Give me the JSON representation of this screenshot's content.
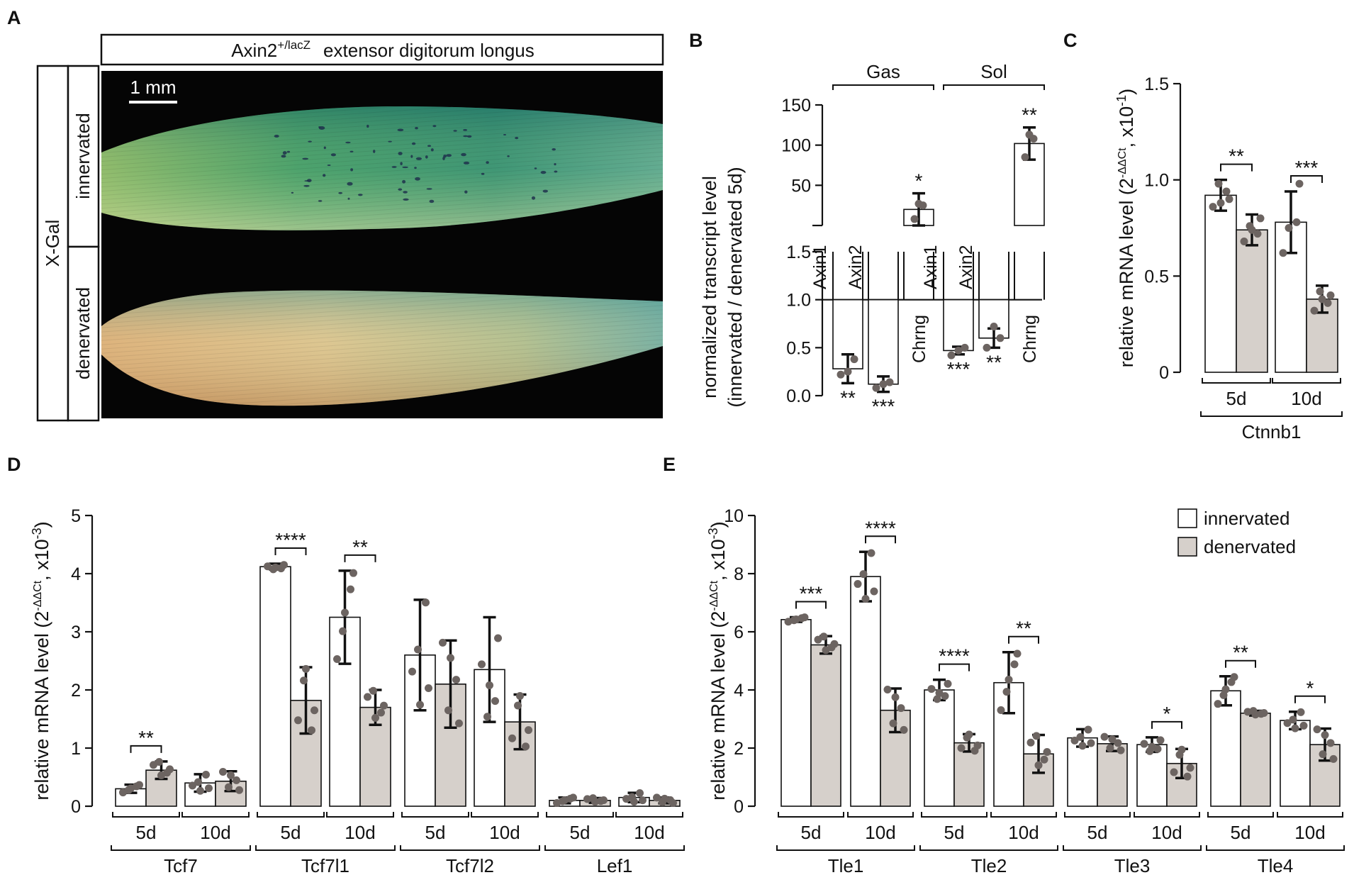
{
  "colors": {
    "innervated": "#ffffff",
    "denervated": "#d6d0cb",
    "dots": "#6c6461",
    "ink": "#111111"
  },
  "panel_a": {
    "letter": "A",
    "title_main": "Axin2",
    "title_sup": "+/lacZ",
    "title_rest": "extensor digitorum longus",
    "stain": "X-Gal",
    "row_top": "innervated",
    "row_bottom": "denervated",
    "scale": "1 mm"
  },
  "chart_data": [
    {
      "id": "B",
      "type": "bar",
      "title": "",
      "ylabel_line1": "normalized transcript level",
      "ylabel_line2": "(innervated / denervated 5d)",
      "broken_axis": true,
      "upper": {
        "ylim": [
          0,
          150
        ],
        "ticks": [
          50,
          100,
          150
        ]
      },
      "lower": {
        "ylim": [
          0,
          1.5
        ],
        "ticks": [
          0.0,
          0.5,
          1.0,
          1.5
        ],
        "baseline": 1.0
      },
      "groups": [
        "Gas",
        "Sol"
      ],
      "categories": [
        "Axin1",
        "Axin2",
        "Chrng",
        "Axin1",
        "Axin2",
        "Chrng"
      ],
      "values": [
        0.28,
        0.12,
        20,
        0.47,
        0.6,
        102
      ],
      "errors": [
        0.15,
        0.08,
        20,
        0.04,
        0.1,
        20
      ],
      "points": [
        [
          0.22,
          0.38,
          0.25
        ],
        [
          0.08,
          0.14,
          0.12
        ],
        [
          8,
          25,
          27
        ],
        [
          0.42,
          0.5,
          0.47
        ],
        [
          0.5,
          0.6,
          0.72
        ],
        [
          85,
          108,
          113
        ]
      ],
      "significance": [
        "**",
        "***",
        "*",
        "***",
        "**",
        "**"
      ]
    },
    {
      "id": "C",
      "type": "bar",
      "ylabel": "relative mRNA level (2",
      "ylabel_sup": "-ΔΔCt",
      "ylabel_mid": ", x10",
      "ylabel_exp": "-1",
      "ylabel_end": ")",
      "ylim": [
        0,
        1.5
      ],
      "ticks": [
        0,
        0.5,
        1.0,
        1.5
      ],
      "tick_labels": [
        "0",
        "0.5",
        "1.0",
        "1.5"
      ],
      "gene": "Ctnnb1",
      "timepoints": [
        "5d",
        "10d"
      ],
      "series": [
        {
          "name": "innervated",
          "values": [
            0.92,
            0.78
          ],
          "errors": [
            0.08,
            0.16
          ]
        },
        {
          "name": "denervated",
          "values": [
            0.74,
            0.38
          ],
          "errors": [
            0.08,
            0.07
          ]
        }
      ],
      "points": [
        [
          [
            0.86,
            0.94,
            0.98,
            0.9,
            0.88
          ],
          [
            0.62,
            0.78,
            0.75,
            0.98
          ]
        ],
        [
          [
            0.68,
            0.72,
            0.76,
            0.8,
            0.74
          ],
          [
            0.32,
            0.36,
            0.42,
            0.4,
            0.38
          ]
        ]
      ],
      "significance": [
        "**",
        "***"
      ]
    },
    {
      "id": "D",
      "type": "bar",
      "ylabel": "relative mRNA level (2",
      "ylabel_sup": "-ΔΔCt",
      "ylabel_mid": ", x10",
      "ylabel_exp": "-3",
      "ylabel_end": ")",
      "ylim": [
        0,
        5
      ],
      "ticks": [
        0,
        1,
        2,
        3,
        4,
        5
      ],
      "tick_labels": [
        "0",
        "1",
        "2",
        "3",
        "4",
        "5"
      ],
      "genes": [
        "Tcf7",
        "Tcf7l1",
        "Tcf7l2",
        "Lef1"
      ],
      "timepoints": [
        "5d",
        "10d"
      ],
      "innervated": [
        [
          0.3,
          0.4
        ],
        [
          4.12,
          3.25
        ],
        [
          2.6,
          2.35
        ],
        [
          0.1,
          0.15
        ]
      ],
      "innervated_err": [
        [
          0.07,
          0.15
        ],
        [
          0.05,
          0.8
        ],
        [
          0.95,
          0.9
        ],
        [
          0.05,
          0.08
        ]
      ],
      "denervated": [
        [
          0.62,
          0.43
        ],
        [
          1.82,
          1.7
        ],
        [
          2.1,
          1.45
        ],
        [
          0.1,
          0.1
        ]
      ],
      "denervated_err": [
        [
          0.15,
          0.17
        ],
        [
          0.57,
          0.3
        ],
        [
          0.75,
          0.47
        ],
        [
          0.04,
          0.05
        ]
      ],
      "significance": [
        {
          "gene": 0,
          "time": 0,
          "label": "**"
        },
        {
          "gene": 1,
          "time": 0,
          "label": "****"
        },
        {
          "gene": 1,
          "time": 1,
          "label": "**"
        }
      ]
    },
    {
      "id": "E",
      "type": "bar",
      "ylabel": "relative mRNA level (2",
      "ylabel_sup": "-ΔΔCt",
      "ylabel_mid": ", x10",
      "ylabel_exp": "-3",
      "ylabel_end": ")",
      "ylim": [
        0,
        10
      ],
      "ticks": [
        0,
        2,
        4,
        6,
        8,
        10
      ],
      "tick_labels": [
        "0",
        "2",
        "4",
        "6",
        "8",
        "10"
      ],
      "genes": [
        "Tle1",
        "Tle2",
        "Tle3",
        "Tle4"
      ],
      "timepoints": [
        "5d",
        "10d"
      ],
      "innervated": [
        [
          6.42,
          7.9
        ],
        [
          4.0,
          4.25
        ],
        [
          2.35,
          2.12
        ],
        [
          3.97,
          2.95
        ]
      ],
      "innervated_err": [
        [
          0.08,
          0.85
        ],
        [
          0.35,
          1.05
        ],
        [
          0.3,
          0.25
        ],
        [
          0.5,
          0.3
        ]
      ],
      "denervated": [
        [
          5.55,
          3.3
        ],
        [
          2.18,
          1.8
        ],
        [
          2.15,
          1.47
        ],
        [
          3.2,
          2.12
        ]
      ],
      "denervated_err": [
        [
          0.3,
          0.75
        ],
        [
          0.3,
          0.65
        ],
        [
          0.25,
          0.5
        ],
        [
          0.08,
          0.55
        ]
      ],
      "significance": [
        {
          "gene": 0,
          "time": 0,
          "label": "***"
        },
        {
          "gene": 0,
          "time": 1,
          "label": "****"
        },
        {
          "gene": 1,
          "time": 0,
          "label": "****"
        },
        {
          "gene": 1,
          "time": 1,
          "label": "**"
        },
        {
          "gene": 2,
          "time": 1,
          "label": "*"
        },
        {
          "gene": 3,
          "time": 0,
          "label": "**"
        },
        {
          "gene": 3,
          "time": 1,
          "label": "*"
        }
      ],
      "legend": {
        "position": "top-right",
        "entries": [
          "innervated",
          "denervated"
        ]
      }
    }
  ]
}
